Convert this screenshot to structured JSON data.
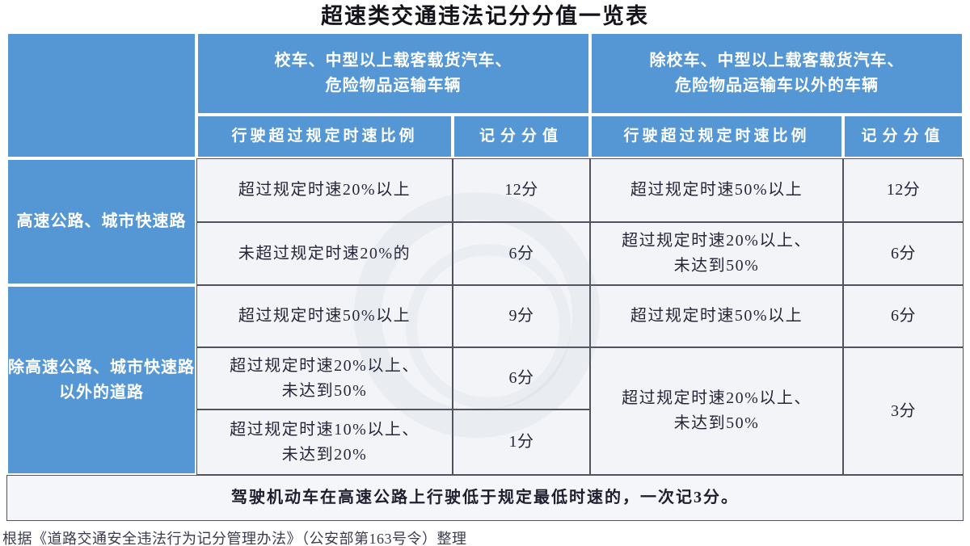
{
  "page_title": "超速类交通违法记分分值一览表",
  "table": {
    "column_groups": [
      {
        "label": "校车、中型以上载客载货汽车、\n危险物品运输车辆"
      },
      {
        "label": "除校车、中型以上载客载货汽车、\n危险物品运输车以外的车辆"
      }
    ],
    "subheaders": {
      "ratio": "行驶超过规定时速比例",
      "points": "记分分值"
    },
    "row_groups": [
      {
        "label": "高速公路、城市快速路"
      },
      {
        "label": "除高速公路、城市快速路\n以外的道路"
      }
    ],
    "rows": [
      {
        "left": {
          "condition": "超过规定时速20%以上",
          "points": "12分"
        },
        "right": {
          "condition": "超过规定时速50%以上",
          "points": "12分"
        }
      },
      {
        "left": {
          "condition": "未超过规定时速20%的",
          "points": "6分"
        },
        "right": {
          "condition": "超过规定时速20%以上、\n未达到50%",
          "points": "6分"
        }
      },
      {
        "left": {
          "condition": "超过规定时速50%以上",
          "points": "9分"
        },
        "right": {
          "condition": "超过规定时速50%以上",
          "points": "6分"
        }
      },
      {
        "left": {
          "condition": "超过规定时速20%以上、\n未达到50%",
          "points": "6分"
        },
        "right": {
          "condition": "超过规定时速20%以上、\n未达到50%",
          "points": "3分"
        }
      },
      {
        "left": {
          "condition": "超过规定时速10%以上、\n未达到20%",
          "points": "1分"
        }
      }
    ],
    "footer_note": "驾驶机动车在高速公路上行驶低于规定最低时速的，一次记3分。"
  },
  "attribution": "根据《道路交通安全违法行为记分管理办法》（公安部第163号令）整理",
  "colors": {
    "header_blue": "#5596d5",
    "cell_background": "#f2f4f7",
    "grid_line_dark": "#52525e",
    "header_text": "#ffffff",
    "body_text": "#26263a"
  }
}
